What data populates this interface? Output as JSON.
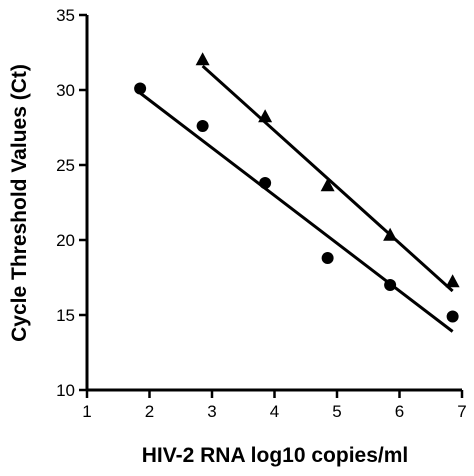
{
  "chart_data": {
    "type": "scatter",
    "title": "",
    "xlabel": "HIV-2 RNA log10 copies/ml",
    "ylabel": "Cycle Threshold Values (Ct)",
    "xlim": [
      1,
      7
    ],
    "ylim": [
      10,
      35
    ],
    "xticks": [
      "1",
      "2",
      "3",
      "4",
      "5",
      "6",
      "7"
    ],
    "yticks": [
      "10",
      "15",
      "20",
      "25",
      "30",
      "35"
    ],
    "grid": false,
    "series": [
      {
        "marker": "triangle",
        "color": "#000000",
        "x": [
          2.85,
          3.85,
          4.85,
          5.85,
          6.85
        ],
        "y": [
          32.0,
          28.2,
          23.6,
          20.3,
          17.2
        ],
        "fit": {
          "x": [
            2.85,
            6.85
          ],
          "y": [
            31.6,
            16.6
          ]
        }
      },
      {
        "marker": "circle",
        "color": "#000000",
        "x": [
          1.85,
          2.85,
          3.85,
          4.85,
          5.85,
          6.85
        ],
        "y": [
          30.1,
          27.6,
          23.8,
          18.8,
          17.0,
          14.9
        ],
        "fit": {
          "x": [
            1.85,
            6.85
          ],
          "y": [
            29.8,
            13.9
          ]
        }
      }
    ]
  }
}
